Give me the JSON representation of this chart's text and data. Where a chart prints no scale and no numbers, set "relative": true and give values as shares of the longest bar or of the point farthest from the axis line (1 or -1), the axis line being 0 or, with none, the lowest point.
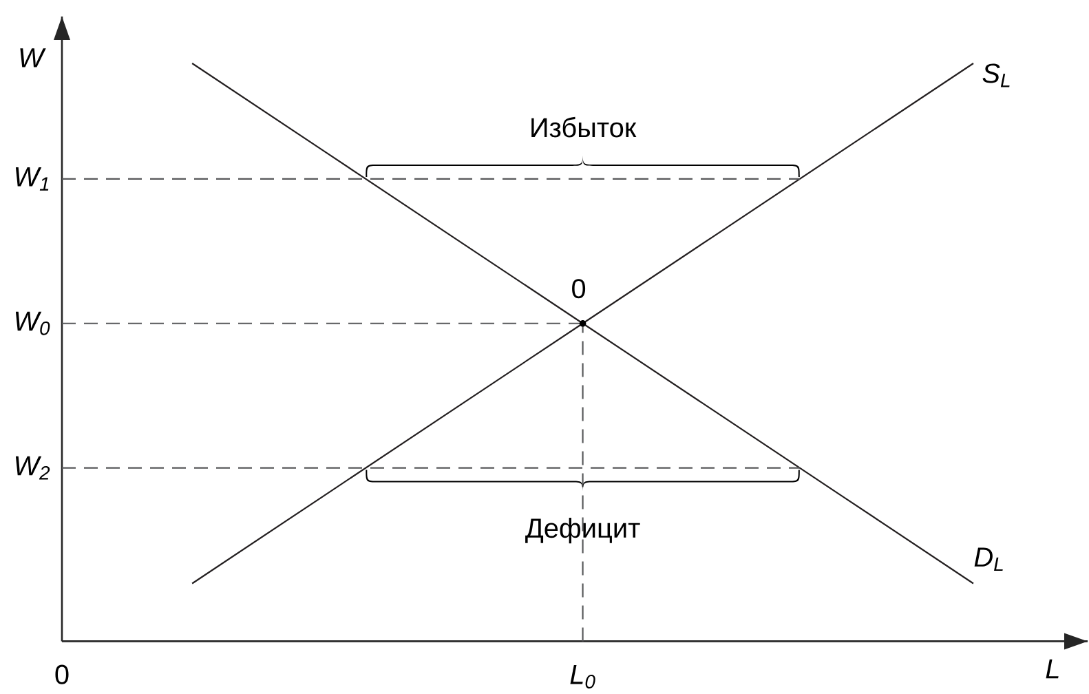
{
  "chart_data": {
    "type": "line",
    "relative": true,
    "xlabel": "L",
    "ylabel": "W",
    "categories": [
      "0",
      null,
      null,
      null,
      "L$_{0}$",
      null,
      null,
      null
    ],
    "series": [
      {
        "name": "S$_{L}$",
        "color": "#231f20",
        "values": [
          null,
          0.1,
          0.25,
          0.4,
          0.55,
          0.7,
          0.85,
          1.0
        ]
      },
      {
        "name": "D$_{L}$",
        "color": "#231f20",
        "values": [
          null,
          1.0,
          0.85,
          0.7,
          0.55,
          0.4,
          0.25,
          0.1
        ]
      }
    ],
    "ref_lines": [
      {
        "axis": "y",
        "value": 0.8,
        "label": "W$_{1}$",
        "line_style": "dashed",
        "color": "#58595b"
      },
      {
        "axis": "y",
        "value": 0.55,
        "label": "W$_{0}$",
        "line_style": "dashed",
        "color": "#58595b"
      },
      {
        "axis": "y",
        "value": 0.3,
        "label": "W$_{2}$",
        "line_style": "dashed",
        "color": "#58595b"
      },
      {
        "axis": "x",
        "value": "L$_{0}$",
        "line_style": "dashed",
        "color": "#58595b"
      }
    ],
    "annotations": [
      {
        "text": "Избыток",
        "x": "L$_{0}$",
        "y": 0.8
      },
      {
        "text": "0",
        "x": "L$_{0}$",
        "y": 0.55
      },
      {
        "text": "Дефицит",
        "x": "L$_{0}$",
        "y": 0.3
      }
    ]
  }
}
